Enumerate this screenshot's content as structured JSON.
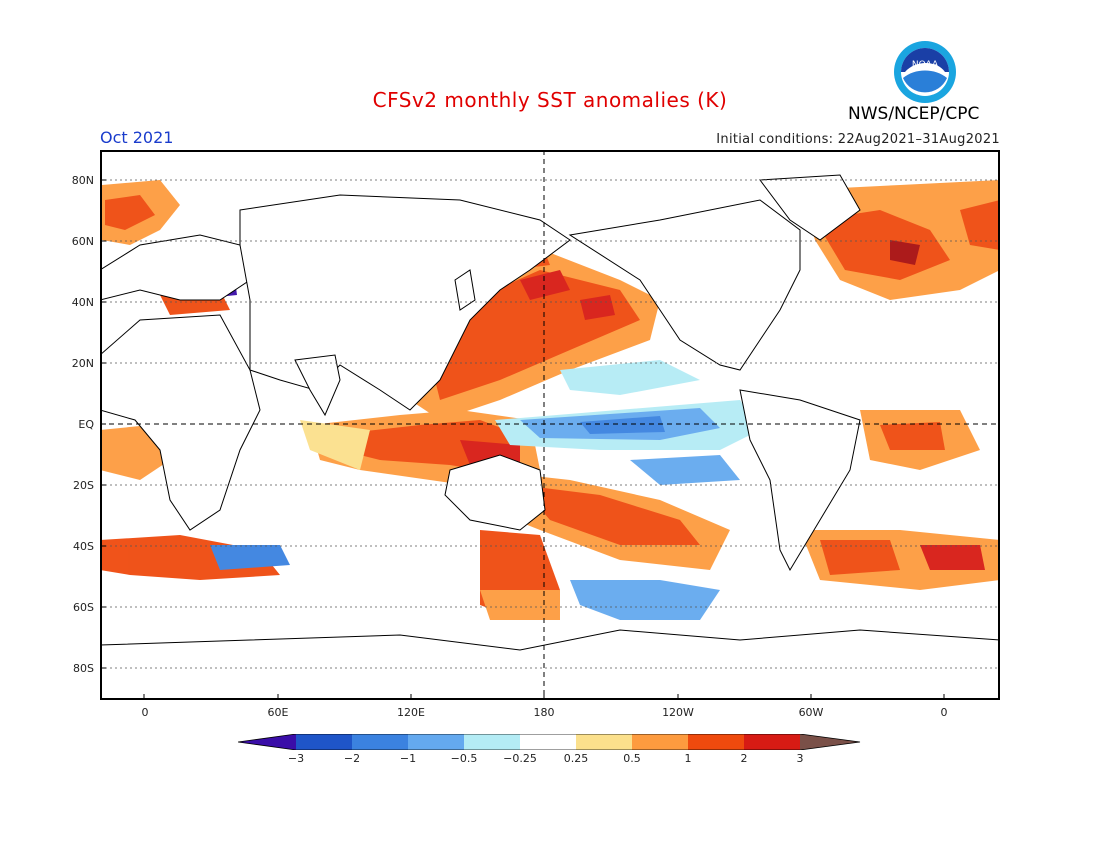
{
  "header": {
    "title": "CFSv2 monthly SST anomalies (K)",
    "month": "Oct 2021",
    "initial_conditions": "Initial conditions: 22Aug2021–31Aug2021",
    "organization": "NWS/NCEP/CPC",
    "logo_text": "NOAA"
  },
  "map": {
    "y_ticks": [
      "80N",
      "60N",
      "40N",
      "20N",
      "EQ",
      "20S",
      "40S",
      "60S",
      "80S"
    ],
    "x_ticks": [
      "0",
      "60E",
      "120E",
      "180",
      "120W",
      "60W",
      "0"
    ],
    "colors": {
      "land_outline": "#000000",
      "graticule": "#555555"
    }
  },
  "colorbar": {
    "labels": [
      "−3",
      "−2",
      "−1",
      "−0.5",
      "−0.25",
      "0.25",
      "0.5",
      "1",
      "2",
      "3"
    ],
    "colors": [
      "#3a0da8",
      "#1f55c8",
      "#3b82e0",
      "#64a9ef",
      "#b4ecf5",
      "#ffffff",
      "#fbe08c",
      "#fd9b3f",
      "#ef4a0e",
      "#d71b14",
      "#a80f0f",
      "#7a5048"
    ]
  }
}
